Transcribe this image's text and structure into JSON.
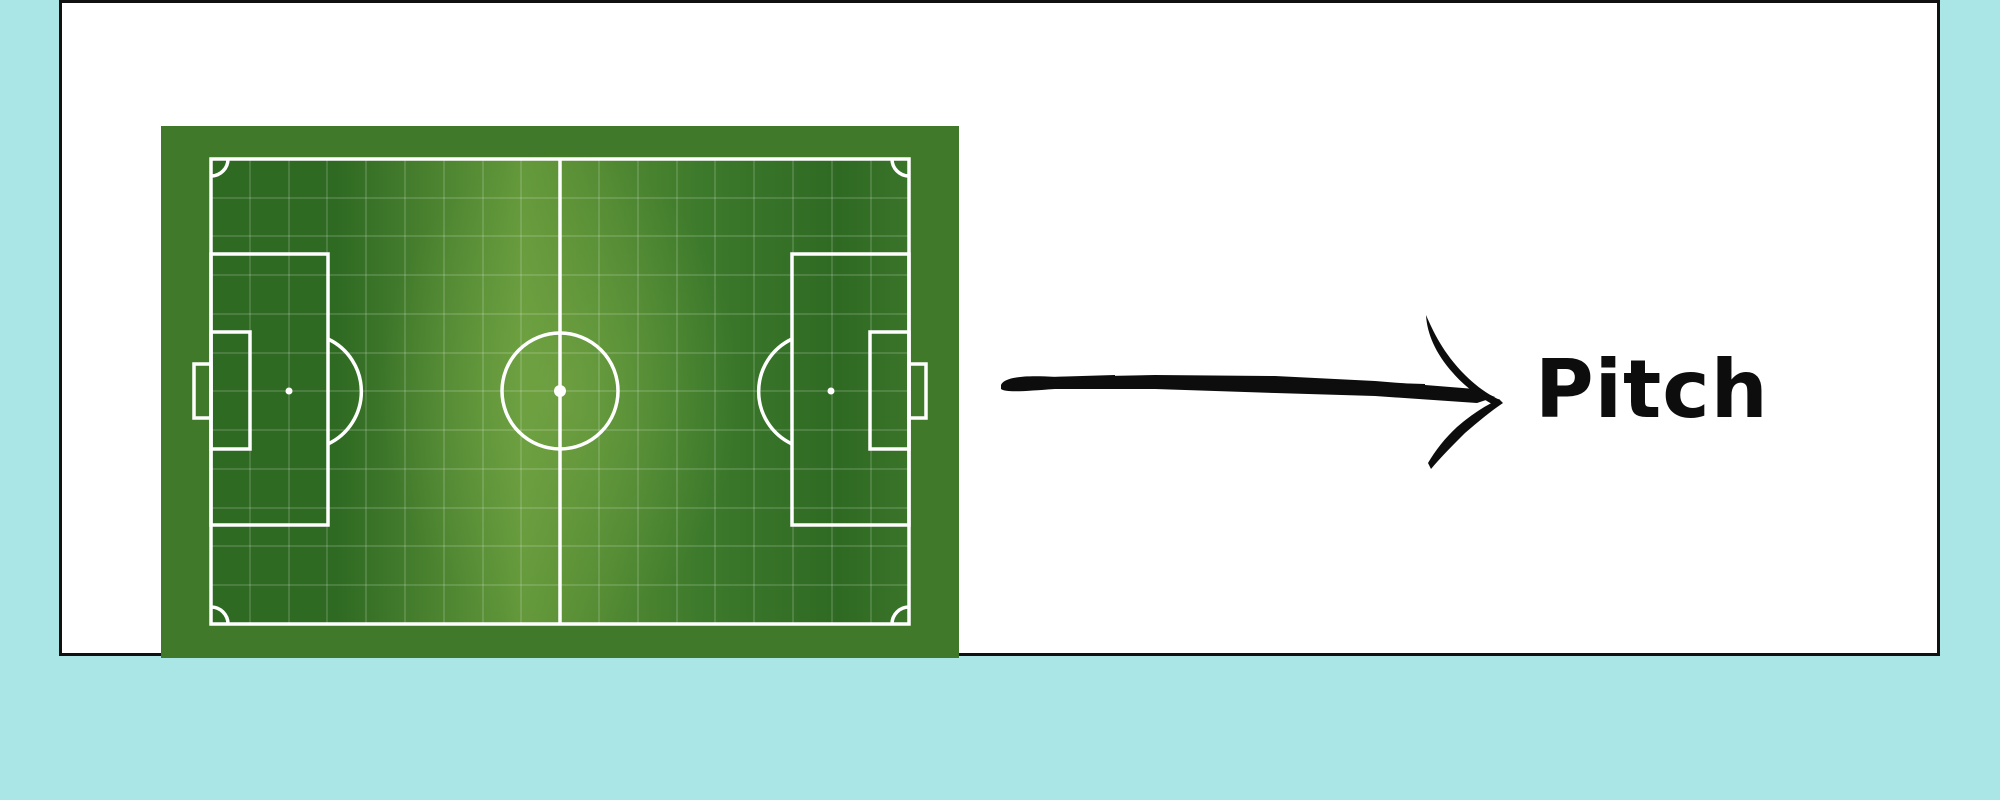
{
  "diagram": {
    "label": "Pitch",
    "arrow_icon": "hand-drawn-arrow-icon",
    "pitch_icon": "football-pitch-icon",
    "colors": {
      "background": "#abe6e6",
      "card": "#ffffff",
      "pitch_surround": "#41792a",
      "pitch_dark": "#2f6a23",
      "pitch_light": "#64993b",
      "lines": "#ffffff",
      "ink": "#0d0d0d"
    }
  }
}
